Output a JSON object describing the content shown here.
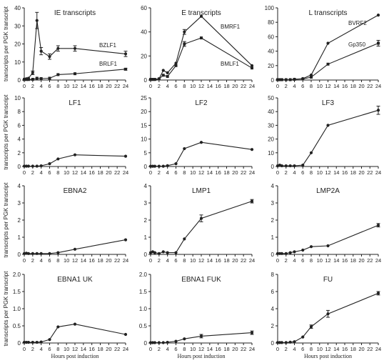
{
  "figure": {
    "ylabel": "transcripts per PGK transcript",
    "xlabel": "Hours post induction"
  },
  "chart_data": [
    {
      "type": "line",
      "title": "IE transcripts",
      "ylim": [
        0,
        40
      ],
      "yticks": [
        0,
        10,
        20,
        30,
        40
      ],
      "x": [
        0,
        2,
        4,
        6,
        8,
        10,
        12,
        14,
        16,
        18,
        20,
        22,
        24
      ],
      "series": [
        {
          "name": "BZLF1",
          "x": [
            0,
            0.5,
            1,
            2,
            3,
            4,
            6,
            8,
            12,
            24
          ],
          "values": [
            0.5,
            0.7,
            1,
            4,
            33,
            16,
            13,
            17.5,
            17.5,
            14.5
          ],
          "err": [
            0,
            0,
            0,
            1,
            4.5,
            2,
            1.5,
            1.5,
            1.5,
            1.5
          ]
        },
        {
          "name": "BRLF1",
          "x": [
            0,
            0.5,
            1,
            2,
            3,
            4,
            6,
            8,
            12,
            24
          ],
          "values": [
            0.3,
            0.3,
            0.3,
            0.4,
            1,
            0.8,
            1,
            3,
            3.5,
            6
          ],
          "err": [
            0,
            0,
            0,
            0,
            0,
            0,
            0,
            0,
            0,
            0.5
          ]
        }
      ]
    },
    {
      "type": "line",
      "title": "E transcripts",
      "ylim": [
        0,
        60
      ],
      "yticks": [
        0,
        20,
        40,
        60
      ],
      "x": [
        0,
        2,
        4,
        6,
        8,
        10,
        12,
        14,
        16,
        18,
        20,
        22,
        24
      ],
      "series": [
        {
          "name": "BMRF1",
          "x": [
            0,
            0.5,
            1,
            2,
            3,
            4,
            6,
            8,
            12,
            24
          ],
          "values": [
            0.5,
            0.5,
            0.5,
            1,
            8,
            6,
            14,
            40,
            53,
            12
          ],
          "err": [
            0,
            0,
            0,
            0,
            0,
            0,
            0,
            2,
            0,
            0
          ]
        },
        {
          "name": "BMLF1",
          "x": [
            0,
            0.5,
            1,
            2,
            3,
            4,
            6,
            8,
            12,
            24
          ],
          "values": [
            0.5,
            0.5,
            0.5,
            1,
            4,
            3,
            12,
            30,
            35,
            10
          ],
          "err": [
            0,
            0,
            0,
            0,
            0,
            0,
            0,
            2,
            0,
            0
          ]
        }
      ]
    },
    {
      "type": "line",
      "title": "L transcripts",
      "ylim": [
        0,
        100
      ],
      "yticks": [
        0,
        20,
        40,
        60,
        80,
        100
      ],
      "x": [
        0,
        2,
        4,
        6,
        8,
        10,
        12,
        14,
        16,
        18,
        20,
        22,
        24
      ],
      "series": [
        {
          "name": "BVRF2",
          "x": [
            0,
            0.5,
            1,
            2,
            3,
            4,
            6,
            8,
            12,
            24
          ],
          "values": [
            0.5,
            0.5,
            0.5,
            0.5,
            0.5,
            1,
            2,
            7,
            51,
            90
          ],
          "err": [
            0,
            0,
            0,
            0,
            0,
            0,
            0,
            0,
            0,
            0
          ]
        },
        {
          "name": "Gp350",
          "x": [
            0,
            0.5,
            1,
            2,
            3,
            4,
            6,
            8,
            12,
            24
          ],
          "values": [
            0.5,
            0.5,
            0.5,
            0.5,
            0.5,
            1,
            1.5,
            4,
            22,
            51
          ],
          "err": [
            0,
            0,
            0,
            0,
            0,
            0,
            0,
            0,
            0,
            4
          ]
        }
      ]
    },
    {
      "type": "line",
      "title": "LF1",
      "ylim": [
        0,
        10
      ],
      "yticks": [
        0,
        2,
        4,
        6,
        8,
        10
      ],
      "x": [
        0,
        2,
        4,
        6,
        8,
        10,
        12,
        14,
        16,
        18,
        20,
        22,
        24
      ],
      "series": [
        {
          "name": "",
          "x": [
            0,
            0.5,
            1,
            2,
            3,
            4,
            6,
            8,
            12,
            24
          ],
          "values": [
            0.05,
            0.05,
            0.05,
            0.05,
            0.05,
            0.1,
            0.4,
            1.1,
            1.7,
            1.5
          ],
          "err": [
            0,
            0,
            0,
            0,
            0,
            0,
            0,
            0,
            0,
            0
          ]
        }
      ]
    },
    {
      "type": "line",
      "title": "LF2",
      "ylim": [
        0,
        25
      ],
      "yticks": [
        0,
        5,
        10,
        15,
        20,
        25
      ],
      "x": [
        0,
        2,
        4,
        6,
        8,
        10,
        12,
        14,
        16,
        18,
        20,
        22,
        24
      ],
      "series": [
        {
          "name": "",
          "x": [
            0,
            0.5,
            1,
            2,
            3,
            4,
            6,
            8,
            12,
            24
          ],
          "values": [
            0.1,
            0.1,
            0.1,
            0.1,
            0.1,
            0.3,
            1,
            6.5,
            8.8,
            6.2
          ],
          "err": [
            0,
            0,
            0,
            0,
            0,
            0,
            0,
            0,
            0,
            0
          ]
        }
      ]
    },
    {
      "type": "line",
      "title": "LF3",
      "ylim": [
        0,
        50
      ],
      "yticks": [
        0,
        10,
        20,
        30,
        40,
        50
      ],
      "x": [
        0,
        2,
        4,
        6,
        8,
        10,
        12,
        14,
        16,
        18,
        20,
        22,
        24
      ],
      "series": [
        {
          "name": "",
          "x": [
            0,
            0.5,
            1,
            2,
            3,
            4,
            6,
            8,
            12,
            24
          ],
          "values": [
            0.5,
            1,
            0.5,
            0.5,
            0.5,
            0.5,
            1,
            10,
            30,
            41
          ],
          "err": [
            0,
            0,
            0,
            0,
            0,
            0,
            0,
            0,
            0,
            3
          ]
        }
      ]
    },
    {
      "type": "line",
      "title": "EBNA2",
      "ylim": [
        0,
        4
      ],
      "yticks": [
        0,
        1,
        2,
        3,
        4
      ],
      "x": [
        0,
        2,
        4,
        6,
        8,
        10,
        12,
        14,
        16,
        18,
        20,
        22,
        24
      ],
      "series": [
        {
          "name": "",
          "x": [
            0,
            0.5,
            1,
            2,
            3,
            4,
            6,
            8,
            12,
            24
          ],
          "values": [
            0.05,
            0.07,
            0.05,
            0.05,
            0.05,
            0.05,
            0.05,
            0.1,
            0.3,
            0.85
          ],
          "err": [
            0,
            0,
            0,
            0,
            0,
            0,
            0,
            0,
            0,
            0
          ]
        }
      ]
    },
    {
      "type": "line",
      "title": "LMP1",
      "ylim": [
        0,
        4
      ],
      "yticks": [
        0,
        1,
        2,
        3,
        4
      ],
      "x": [
        0,
        2,
        4,
        6,
        8,
        10,
        12,
        14,
        16,
        18,
        20,
        22,
        24
      ],
      "series": [
        {
          "name": "",
          "x": [
            0,
            0.5,
            1,
            2,
            3,
            4,
            6,
            8,
            12,
            24
          ],
          "values": [
            0.1,
            0.15,
            0.1,
            0.05,
            0.15,
            0.1,
            0.1,
            0.9,
            2.1,
            3.1
          ],
          "err": [
            0,
            0,
            0,
            0,
            0,
            0,
            0,
            0,
            0.2,
            0.1
          ]
        }
      ]
    },
    {
      "type": "line",
      "title": "LMP2A",
      "ylim": [
        0,
        4
      ],
      "yticks": [
        0,
        1,
        2,
        3,
        4
      ],
      "x": [
        0,
        2,
        4,
        6,
        8,
        10,
        12,
        14,
        16,
        18,
        20,
        22,
        24
      ],
      "series": [
        {
          "name": "",
          "x": [
            0,
            0.5,
            1,
            2,
            3,
            4,
            6,
            8,
            12,
            24
          ],
          "values": [
            0.05,
            0.05,
            0.05,
            0.05,
            0.1,
            0.15,
            0.25,
            0.45,
            0.5,
            1.7
          ],
          "err": [
            0,
            0,
            0,
            0,
            0,
            0,
            0,
            0,
            0,
            0.1
          ]
        }
      ]
    },
    {
      "type": "line",
      "title": "EBNA1 UK",
      "ylim": [
        0,
        2
      ],
      "yticks": [
        "0",
        "0.5",
        "1.0",
        "1.5",
        "2.0"
      ],
      "x": [
        0,
        2,
        4,
        6,
        8,
        10,
        12,
        14,
        16,
        18,
        20,
        22,
        24
      ],
      "series": [
        {
          "name": "",
          "x": [
            0,
            0.5,
            1,
            2,
            3,
            4,
            6,
            8,
            12,
            24
          ],
          "values": [
            0.02,
            0.02,
            0.02,
            0.02,
            0.02,
            0.03,
            0.1,
            0.47,
            0.55,
            0.25
          ],
          "err": [
            0,
            0,
            0,
            0,
            0,
            0,
            0,
            0,
            0,
            0
          ]
        }
      ]
    },
    {
      "type": "line",
      "title": "EBNA1 FUK",
      "ylim": [
        0,
        2
      ],
      "yticks": [
        "0",
        "0.5",
        "1.0",
        "1.5",
        "2.0"
      ],
      "x": [
        0,
        2,
        4,
        6,
        8,
        10,
        12,
        14,
        16,
        18,
        20,
        22,
        24
      ],
      "series": [
        {
          "name": "",
          "x": [
            0,
            0.5,
            1,
            2,
            3,
            4,
            6,
            8,
            12,
            24
          ],
          "values": [
            0.01,
            0.01,
            0.01,
            0.01,
            0.01,
            0.02,
            0.05,
            0.12,
            0.2,
            0.3
          ],
          "err": [
            0,
            0,
            0,
            0,
            0,
            0,
            0,
            0,
            0.05,
            0.05
          ]
        }
      ]
    },
    {
      "type": "line",
      "title": "FU",
      "ylim": [
        0,
        8
      ],
      "yticks": [
        0,
        2,
        4,
        6,
        8
      ],
      "x": [
        0,
        2,
        4,
        6,
        8,
        10,
        12,
        14,
        16,
        18,
        20,
        22,
        24
      ],
      "series": [
        {
          "name": "",
          "x": [
            0,
            0.5,
            1,
            2,
            3,
            4,
            6,
            8,
            12,
            24
          ],
          "values": [
            0.05,
            0.05,
            0.05,
            0.05,
            0.1,
            0.15,
            0.7,
            1.9,
            3.4,
            5.8
          ],
          "err": [
            0,
            0,
            0,
            0,
            0,
            0,
            0,
            0.2,
            0.4,
            0.2
          ]
        }
      ]
    }
  ]
}
